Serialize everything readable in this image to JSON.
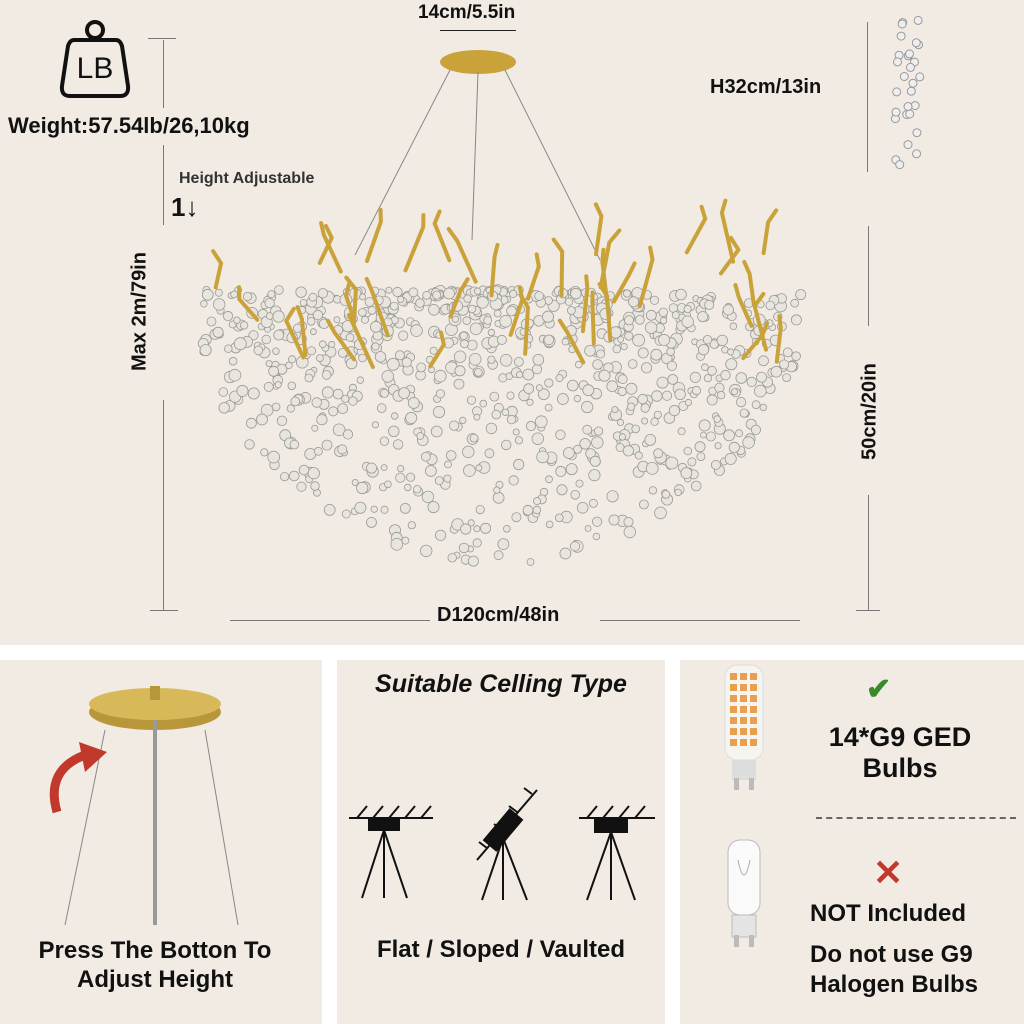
{
  "weight": {
    "icon": "weight-lb-icon",
    "icon_text": "LB",
    "label": "Weight:57.54lb/26,10kg"
  },
  "height_adjustable": {
    "label": "Height Adjustable",
    "icon": "up-down-arrow-icon"
  },
  "dimensions": {
    "canopy": "14cm/5.5in",
    "crystal_height": "H32cm/13in",
    "max_height": "Max 2m/79in",
    "body_height": "50cm/20in",
    "diameter": "D120cm/48in"
  },
  "panel_adjust": {
    "caption_line1": "Press The Botton To",
    "caption_line2": "Adjust Height",
    "icon": "curved-arrow-icon",
    "arrow_color": "#c0392b"
  },
  "panel_ceiling": {
    "title": "Suitable Celling Type",
    "caption": "Flat / Sloped / Vaulted"
  },
  "panel_bulbs": {
    "included_line1": "14*G9 GED",
    "included_line2": "Bulbs",
    "check_color": "#3a8a2a",
    "not_included": "NOT Included",
    "warning_line1": "Do not use G9",
    "warning_line2": "Halogen Bulbs",
    "cross_color": "#c0392b"
  },
  "colors": {
    "background": "#f1ebe4",
    "gold": "#c9a23a"
  }
}
